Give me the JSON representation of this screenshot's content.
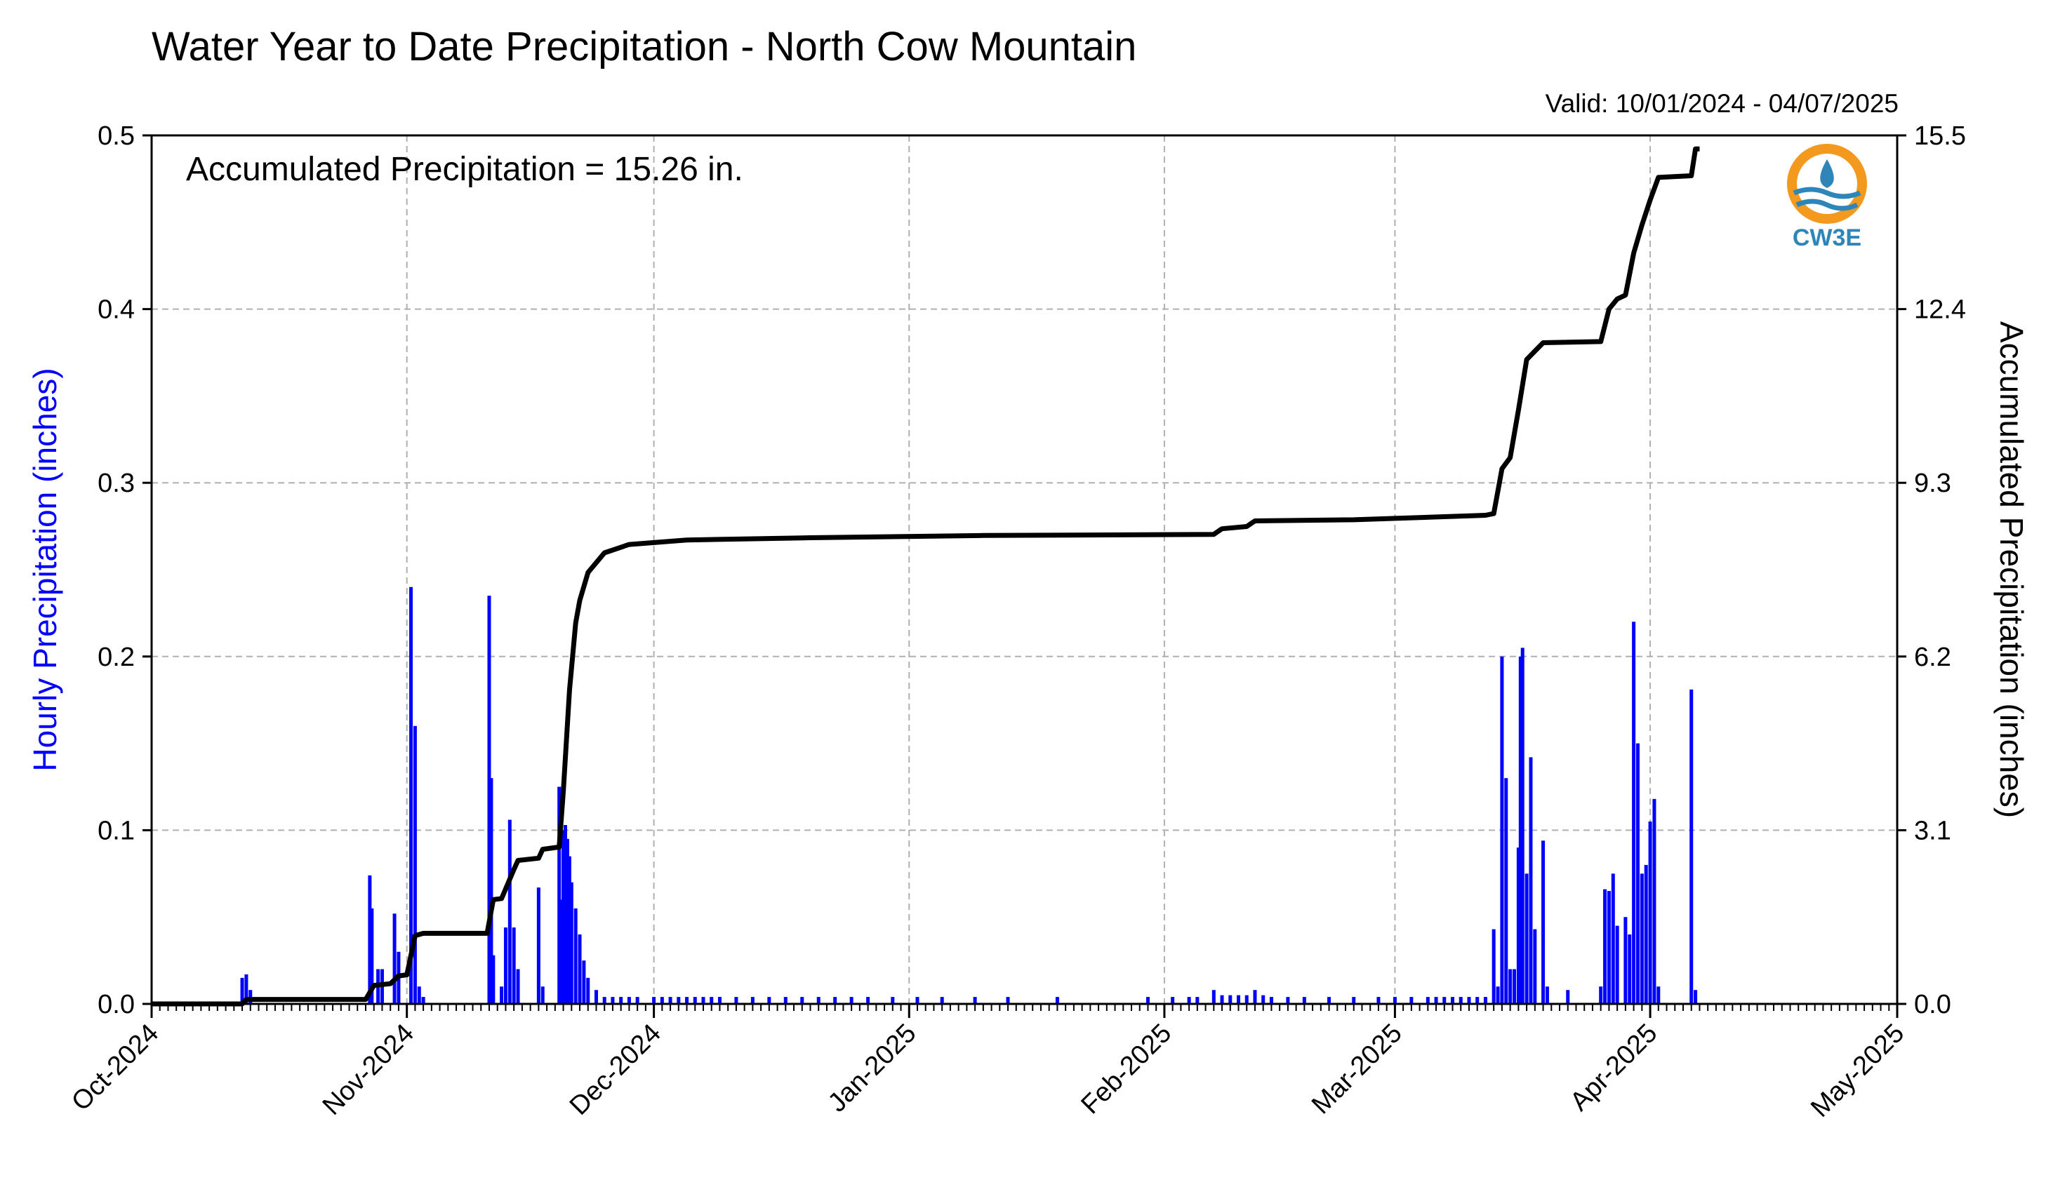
{
  "chart_data": {
    "type": "bar+line",
    "title": "Water Year to Date Precipitation - North Cow Mountain",
    "valid_range": "Valid: 10/01/2024 - 04/07/2025",
    "annotation": "Accumulated Precipitation = 15.26 in.",
    "ylabel_left": "Hourly Precipitation (inches)",
    "ylabel_right": "Accumulated Precipitation (inches)",
    "logo_text": "CW3E",
    "x_range": [
      "2024-10-01",
      "2025-05-01"
    ],
    "ylim_left": [
      0,
      0.5
    ],
    "ylim_right": [
      0,
      15.5
    ],
    "left_ticks": [
      "0.0",
      "0.1",
      "0.2",
      "0.3",
      "0.4",
      "0.5"
    ],
    "right_ticks": [
      "0.0",
      "3.1",
      "6.2",
      "9.3",
      "12.4",
      "15.5"
    ],
    "x_ticks": [
      {
        "date": "2024-10-01",
        "label": "Oct-2024"
      },
      {
        "date": "2024-11-01",
        "label": "Nov-2024"
      },
      {
        "date": "2024-12-01",
        "label": "Dec-2024"
      },
      {
        "date": "2025-01-01",
        "label": "Jan-2025"
      },
      {
        "date": "2025-02-01",
        "label": "Feb-2025"
      },
      {
        "date": "2025-03-01",
        "label": "Mar-2025"
      },
      {
        "date": "2025-04-01",
        "label": "Apr-2025"
      },
      {
        "date": "2025-05-01",
        "label": "May-2025"
      }
    ],
    "grid": true,
    "colors": {
      "hourly": "#0000ff",
      "accumulated": "#000000",
      "logo_orange": "#f39a1e",
      "logo_blue": "#2e86b8"
    },
    "hourly_series": {
      "name": "Hourly Precipitation",
      "points": [
        [
          "2024-10-12T00",
          0.015
        ],
        [
          "2024-10-12T12",
          0.017
        ],
        [
          "2024-10-13T00",
          0.008
        ],
        [
          "2024-10-27T12",
          0.074
        ],
        [
          "2024-10-27T18",
          0.055
        ],
        [
          "2024-10-28T12",
          0.02
        ],
        [
          "2024-10-29T00",
          0.02
        ],
        [
          "2024-10-30T12",
          0.052
        ],
        [
          "2024-10-31T00",
          0.03
        ],
        [
          "2024-11-01T12",
          0.24
        ],
        [
          "2024-11-02T00",
          0.16
        ],
        [
          "2024-11-02T12",
          0.01
        ],
        [
          "2024-11-03T00",
          0.004
        ],
        [
          "2024-11-11T00",
          0.235
        ],
        [
          "2024-11-11T06",
          0.13
        ],
        [
          "2024-11-11T12",
          0.028
        ],
        [
          "2024-11-12T12",
          0.01
        ],
        [
          "2024-11-13T00",
          0.044
        ],
        [
          "2024-11-13T12",
          0.106
        ],
        [
          "2024-11-14T00",
          0.044
        ],
        [
          "2024-11-14T12",
          0.02
        ],
        [
          "2024-11-17T00",
          0.067
        ],
        [
          "2024-11-17T12",
          0.01
        ],
        [
          "2024-11-19T12",
          0.125
        ],
        [
          "2024-11-19T18",
          0.06
        ],
        [
          "2024-11-20T00",
          0.1
        ],
        [
          "2024-11-20T06",
          0.103
        ],
        [
          "2024-11-20T12",
          0.095
        ],
        [
          "2024-11-20T18",
          0.085
        ],
        [
          "2024-11-21T00",
          0.07
        ],
        [
          "2024-11-21T12",
          0.055
        ],
        [
          "2024-11-22T00",
          0.04
        ],
        [
          "2024-11-22T12",
          0.025
        ],
        [
          "2024-11-23T00",
          0.015
        ],
        [
          "2024-11-24T00",
          0.008
        ],
        [
          "2024-11-25T00",
          0.004
        ],
        [
          "2024-11-26T00",
          0.004
        ],
        [
          "2024-11-27T00",
          0.004
        ],
        [
          "2024-11-28T00",
          0.004
        ],
        [
          "2024-11-29T00",
          0.004
        ],
        [
          "2024-12-01T00",
          0.004
        ],
        [
          "2024-12-02T00",
          0.004
        ],
        [
          "2024-12-03T00",
          0.004
        ],
        [
          "2024-12-04T00",
          0.004
        ],
        [
          "2024-12-05T00",
          0.004
        ],
        [
          "2024-12-06T00",
          0.004
        ],
        [
          "2024-12-07T00",
          0.004
        ],
        [
          "2024-12-08T00",
          0.004
        ],
        [
          "2024-12-09T00",
          0.004
        ],
        [
          "2024-12-11T00",
          0.004
        ],
        [
          "2024-12-13T00",
          0.004
        ],
        [
          "2024-12-15T00",
          0.004
        ],
        [
          "2024-12-17T00",
          0.004
        ],
        [
          "2024-12-19T00",
          0.004
        ],
        [
          "2024-12-21T00",
          0.004
        ],
        [
          "2024-12-23T00",
          0.004
        ],
        [
          "2024-12-25T00",
          0.004
        ],
        [
          "2024-12-27T00",
          0.004
        ],
        [
          "2024-12-30T00",
          0.004
        ],
        [
          "2025-01-02T00",
          0.004
        ],
        [
          "2025-01-05T00",
          0.004
        ],
        [
          "2025-01-09T00",
          0.004
        ],
        [
          "2025-01-13T00",
          0.004
        ],
        [
          "2025-01-19T00",
          0.004
        ],
        [
          "2025-01-30T00",
          0.004
        ],
        [
          "2025-02-02T00",
          0.004
        ],
        [
          "2025-02-04T00",
          0.004
        ],
        [
          "2025-02-05T00",
          0.004
        ],
        [
          "2025-02-07T00",
          0.008
        ],
        [
          "2025-02-08T00",
          0.005
        ],
        [
          "2025-02-09T00",
          0.005
        ],
        [
          "2025-02-10T00",
          0.005
        ],
        [
          "2025-02-11T00",
          0.005
        ],
        [
          "2025-02-12T00",
          0.008
        ],
        [
          "2025-02-13T00",
          0.005
        ],
        [
          "2025-02-14T00",
          0.004
        ],
        [
          "2025-02-16T00",
          0.004
        ],
        [
          "2025-02-18T00",
          0.004
        ],
        [
          "2025-02-21T00",
          0.004
        ],
        [
          "2025-02-24T00",
          0.004
        ],
        [
          "2025-02-27T00",
          0.004
        ],
        [
          "2025-03-01T00",
          0.004
        ],
        [
          "2025-03-03T00",
          0.004
        ],
        [
          "2025-03-05T00",
          0.004
        ],
        [
          "2025-03-06T00",
          0.004
        ],
        [
          "2025-03-07T00",
          0.004
        ],
        [
          "2025-03-08T00",
          0.004
        ],
        [
          "2025-03-09T00",
          0.004
        ],
        [
          "2025-03-10T00",
          0.004
        ],
        [
          "2025-03-11T00",
          0.004
        ],
        [
          "2025-03-12T00",
          0.004
        ],
        [
          "2025-03-13T00",
          0.043
        ],
        [
          "2025-03-13T12",
          0.01
        ],
        [
          "2025-03-14T00",
          0.2
        ],
        [
          "2025-03-14T12",
          0.13
        ],
        [
          "2025-03-15T00",
          0.02
        ],
        [
          "2025-03-15T12",
          0.02
        ],
        [
          "2025-03-16T00",
          0.09
        ],
        [
          "2025-03-16T06",
          0.2
        ],
        [
          "2025-03-16T12",
          0.205
        ],
        [
          "2025-03-17T00",
          0.075
        ],
        [
          "2025-03-17T12",
          0.142
        ],
        [
          "2025-03-18T00",
          0.043
        ],
        [
          "2025-03-19T00",
          0.094
        ],
        [
          "2025-03-19T12",
          0.01
        ],
        [
          "2025-03-22T00",
          0.008
        ],
        [
          "2025-03-26T00",
          0.01
        ],
        [
          "2025-03-26T12",
          0.066
        ],
        [
          "2025-03-27T00",
          0.065
        ],
        [
          "2025-03-27T12",
          0.075
        ],
        [
          "2025-03-28T00",
          0.045
        ],
        [
          "2025-03-29T00",
          0.05
        ],
        [
          "2025-03-29T12",
          0.04
        ],
        [
          "2025-03-30T00",
          0.22
        ],
        [
          "2025-03-30T12",
          0.15
        ],
        [
          "2025-03-31T00",
          0.075
        ],
        [
          "2025-03-31T12",
          0.08
        ],
        [
          "2025-04-01T00",
          0.105
        ],
        [
          "2025-04-01T12",
          0.118
        ],
        [
          "2025-04-02T00",
          0.01
        ],
        [
          "2025-04-06T00",
          0.181
        ],
        [
          "2025-04-06T12",
          0.008
        ]
      ]
    },
    "accumulated_series": {
      "name": "Accumulated Precipitation",
      "points": [
        [
          "2024-10-01T00",
          0.0
        ],
        [
          "2024-10-12T00",
          0.0
        ],
        [
          "2024-10-12T12",
          0.08
        ],
        [
          "2024-10-27T00",
          0.08
        ],
        [
          "2024-10-28T00",
          0.33
        ],
        [
          "2024-10-30T00",
          0.36
        ],
        [
          "2024-10-31T00",
          0.5
        ],
        [
          "2024-11-01T00",
          0.52
        ],
        [
          "2024-11-02T00",
          1.22
        ],
        [
          "2024-11-03T00",
          1.26
        ],
        [
          "2024-11-10T18",
          1.26
        ],
        [
          "2024-11-11T12",
          1.86
        ],
        [
          "2024-11-12T12",
          1.88
        ],
        [
          "2024-11-14T00",
          2.4
        ],
        [
          "2024-11-14T12",
          2.56
        ],
        [
          "2024-11-17T00",
          2.6
        ],
        [
          "2024-11-17T12",
          2.76
        ],
        [
          "2024-11-19T12",
          2.8
        ],
        [
          "2024-11-20T00",
          3.8
        ],
        [
          "2024-11-20T18",
          5.6
        ],
        [
          "2024-11-21T12",
          6.8
        ],
        [
          "2024-11-22T00",
          7.2
        ],
        [
          "2024-11-23T00",
          7.7
        ],
        [
          "2024-11-25T00",
          8.05
        ],
        [
          "2024-11-28T00",
          8.2
        ],
        [
          "2024-12-05T00",
          8.28
        ],
        [
          "2024-12-20T00",
          8.32
        ],
        [
          "2025-01-10T00",
          8.36
        ],
        [
          "2025-02-07T00",
          8.38
        ],
        [
          "2025-02-08T00",
          8.48
        ],
        [
          "2025-02-11T00",
          8.52
        ],
        [
          "2025-02-12T00",
          8.62
        ],
        [
          "2025-02-24T00",
          8.64
        ],
        [
          "2025-03-12T00",
          8.72
        ],
        [
          "2025-03-13T00",
          8.75
        ],
        [
          "2025-03-14T00",
          9.55
        ],
        [
          "2025-03-15T00",
          9.75
        ],
        [
          "2025-03-16T00",
          10.6
        ],
        [
          "2025-03-17T00",
          11.5
        ],
        [
          "2025-03-18T00",
          11.65
        ],
        [
          "2025-03-19T00",
          11.8
        ],
        [
          "2025-03-26T00",
          11.82
        ],
        [
          "2025-03-27T00",
          12.4
        ],
        [
          "2025-03-28T00",
          12.58
        ],
        [
          "2025-03-29T00",
          12.65
        ],
        [
          "2025-03-30T00",
          13.4
        ],
        [
          "2025-03-31T00",
          13.9
        ],
        [
          "2025-04-01T00",
          14.35
        ],
        [
          "2025-04-02T00",
          14.75
        ],
        [
          "2025-04-06T00",
          14.78
        ],
        [
          "2025-04-06T12",
          15.26
        ],
        [
          "2025-04-07T00",
          15.26
        ]
      ]
    }
  }
}
